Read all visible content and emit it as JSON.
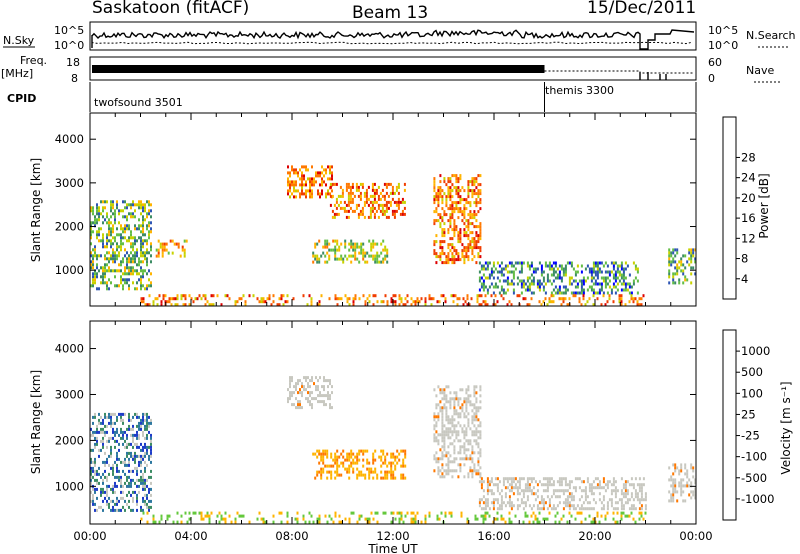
{
  "header": {
    "station": "Saskatoon (fitACF)",
    "beam": "Beam 13",
    "date": "15/Dec/2011"
  },
  "top_panels": {
    "nsky_label": "N.Sky",
    "nsky_ticks": [
      "10^5",
      "10^0"
    ],
    "nsearch_label": "N.Search",
    "nsearch_ticks": [
      "10^5",
      "10^0"
    ],
    "freq_label": "Freq.",
    "freq_unit": "[MHz]",
    "freq_ticks": [
      "18",
      "8"
    ],
    "nave_label": "Nave",
    "nave_ticks": [
      "60",
      "0"
    ],
    "cpid_label": "CPID",
    "cpid_modes": [
      {
        "name": "twofsound 3501",
        "start_hour": 0,
        "end_hour": 18.0
      },
      {
        "name": "themis 3300",
        "start_hour": 18.0,
        "end_hour": 24
      }
    ]
  },
  "chart_data": [
    {
      "type": "heatmap",
      "panel": "power",
      "xlabel": "Time UT",
      "ylabel": "Slant Range [km]",
      "x_ticks": [
        "00:00",
        "04:00",
        "08:00",
        "12:00",
        "16:00",
        "20:00",
        "00:00"
      ],
      "xlim_hours": [
        0,
        24
      ],
      "y_ticks": [
        1000,
        2000,
        3000,
        4000
      ],
      "ylim_km": [
        180,
        4600
      ],
      "colorbar": {
        "label": "Power [dB]",
        "ticks": [
          "4",
          "8",
          "12",
          "16",
          "20",
          "24",
          "28"
        ],
        "colors": [
          "#0000ff",
          "#2d55b4",
          "#3c8c64",
          "#64be46",
          "#c8d200",
          "#ffb400",
          "#ff7800",
          "#f03c00",
          "#dc0000"
        ]
      },
      "echo_regions": [
        {
          "t": [
            0.0,
            2.4
          ],
          "r": [
            600,
            2600
          ],
          "level": 5
        },
        {
          "t": [
            2.6,
            3.8
          ],
          "r": [
            1300,
            1700
          ],
          "level": 3
        },
        {
          "t": [
            7.8,
            9.6
          ],
          "r": [
            2700,
            3400
          ],
          "level": 2
        },
        {
          "t": [
            8.8,
            11.8
          ],
          "r": [
            1200,
            1700
          ],
          "level": 4
        },
        {
          "t": [
            9.5,
            12.5
          ],
          "r": [
            2200,
            3000
          ],
          "level": 2
        },
        {
          "t": [
            13.6,
            15.5
          ],
          "r": [
            1200,
            3200
          ],
          "level": 2
        },
        {
          "t": [
            15.4,
            21.7
          ],
          "r": [
            500,
            1200
          ],
          "level": 6
        },
        {
          "t": [
            22.9,
            24.0
          ],
          "r": [
            700,
            1500
          ],
          "level": 5
        },
        {
          "t": [
            2.0,
            22.0
          ],
          "r": [
            200,
            450
          ],
          "level": 2
        }
      ]
    },
    {
      "type": "heatmap",
      "panel": "velocity",
      "xlabel": "Time UT",
      "ylabel": "Slant Range [km]",
      "x_ticks": [
        "00:00",
        "04:00",
        "08:00",
        "12:00",
        "16:00",
        "20:00",
        "00:00"
      ],
      "xlim_hours": [
        0,
        24
      ],
      "y_ticks": [
        1000,
        2000,
        3000,
        4000
      ],
      "ylim_km": [
        180,
        4600
      ],
      "colorbar": {
        "label": "Velocity [m s⁻¹]",
        "ticks": [
          "1000",
          "500",
          "100",
          "25",
          "-25",
          "-100",
          "-500",
          "-1000"
        ],
        "colors": [
          "#1e3cc8",
          "#2d78a0",
          "#3c8c64",
          "#64c83c",
          "#c8c8c0",
          "#c8c8c0",
          "#ffb400",
          "#ff7800",
          "#e60000"
        ]
      },
      "echo_regions": [
        {
          "t": [
            0.0,
            2.4
          ],
          "r": [
            500,
            2600
          ],
          "color": "mixed-green-blue"
        },
        {
          "t": [
            7.8,
            9.6
          ],
          "r": [
            2700,
            3400
          ],
          "color": "gray"
        },
        {
          "t": [
            8.8,
            12.5
          ],
          "r": [
            1200,
            1800
          ],
          "color": "orange"
        },
        {
          "t": [
            13.6,
            15.5
          ],
          "r": [
            1200,
            3200
          ],
          "color": "gray"
        },
        {
          "t": [
            15.4,
            22.0
          ],
          "r": [
            500,
            1200
          ],
          "color": "gray"
        },
        {
          "t": [
            22.9,
            24.0
          ],
          "r": [
            700,
            1500
          ],
          "color": "gray"
        },
        {
          "t": [
            2.0,
            22.0
          ],
          "r": [
            200,
            450
          ],
          "color": "green-yellow"
        }
      ]
    }
  ]
}
